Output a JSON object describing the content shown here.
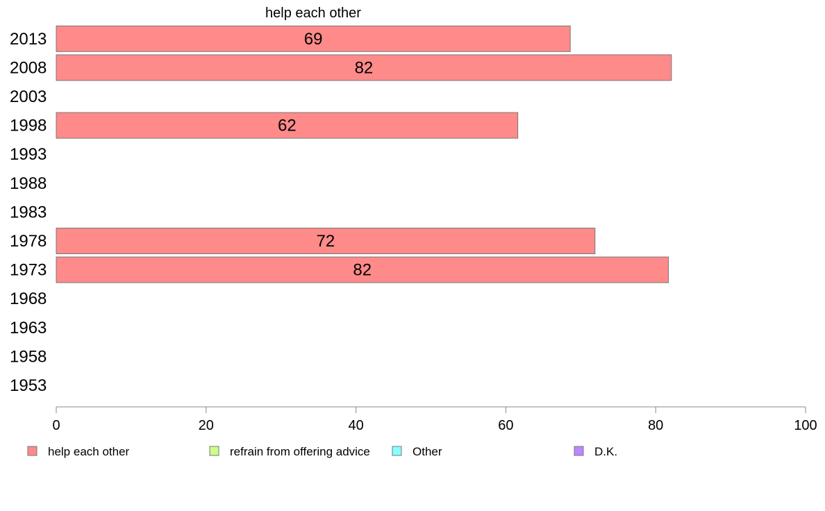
{
  "chart_data": {
    "type": "bar",
    "orientation": "horizontal",
    "title": "",
    "series_title": "help each other",
    "categories": [
      "2013",
      "2008",
      "2003",
      "1998",
      "1993",
      "1988",
      "1983",
      "1978",
      "1973",
      "1968",
      "1963",
      "1958",
      "1953"
    ],
    "series": [
      {
        "name": "help each other",
        "color": "#ff8a8a",
        "values": [
          69,
          82,
          null,
          62,
          null,
          null,
          null,
          72,
          82,
          null,
          null,
          null,
          null
        ],
        "display_values": [
          68.6,
          82.1,
          null,
          61.6,
          null,
          null,
          null,
          71.9,
          81.7,
          null,
          null,
          null,
          null
        ]
      }
    ],
    "xlim": [
      0,
      100
    ],
    "xticks": [
      0,
      20,
      40,
      60,
      80,
      100
    ],
    "grid": false,
    "legend": {
      "position": "bottom",
      "items": [
        {
          "label": "help each other",
          "color": "#ff8a8a"
        },
        {
          "label": "refrain from offering advice",
          "color": "#ccff88"
        },
        {
          "label": "Other",
          "color": "#88ffff"
        },
        {
          "label": "D.K.",
          "color": "#bb88ff"
        }
      ]
    }
  }
}
